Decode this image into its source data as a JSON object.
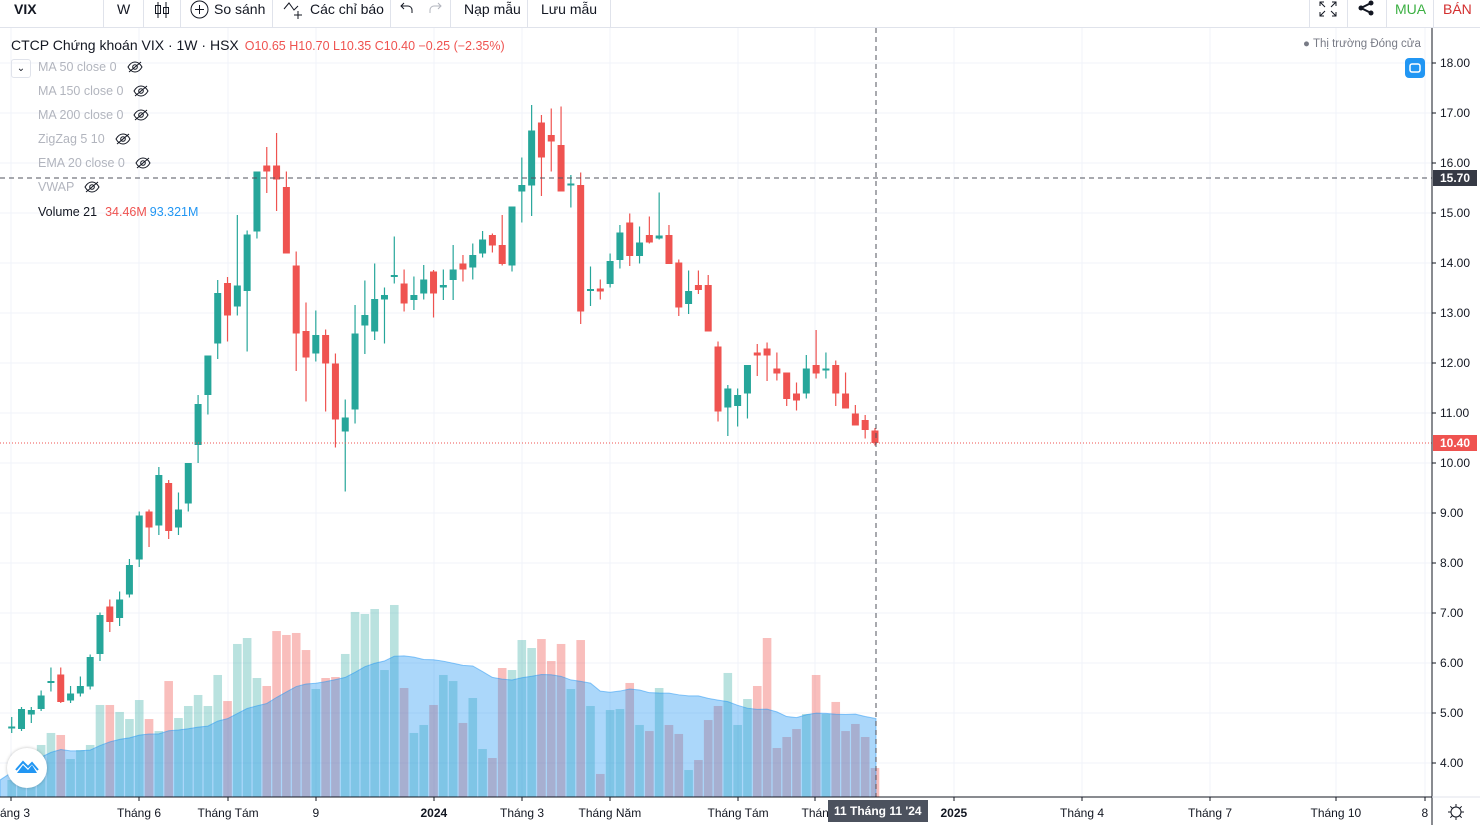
{
  "toolbar": {
    "symbol": "VIX",
    "interval": "W",
    "compare_label": "So sánh",
    "indicators_label": "Các chỉ báo",
    "load_template_label": "Nạp mẫu",
    "save_template_label": "Lưu mẫu",
    "buy_label": "MUA",
    "sell_label": "BÁN"
  },
  "legend": {
    "title": "CTCP Chứng khoán VIX · 1W · HSX",
    "ohlc": "O10.65 H10.70 L10.35 C10.40 −0.25 (−2.35%)",
    "indicators": [
      "MA 50 close 0",
      "MA 150 close 0",
      "MA 200 close 0",
      "ZigZag 5 10",
      "EMA 20 close 0",
      "VWAP"
    ],
    "volume_label": "Volume 21",
    "volume_value": "34.46M",
    "volume_ma_value": "93.321M"
  },
  "market_status": "Thị trường Đóng cửa",
  "crosshair": {
    "price_label": "15.70",
    "time_label": "11 Tháng 11 '24"
  },
  "last_price_label": "10.40",
  "colors": {
    "up": "#26a69a",
    "down": "#ef5350",
    "volume_ma": "#2196f3",
    "buy": "#3cb043",
    "sell": "#d32f2f",
    "accent": "#2196f3"
  },
  "chart_data": {
    "type": "candlestick",
    "price_axis": {
      "ticks": [
        "18.00",
        "17.00",
        "16.00",
        "15.00",
        "14.00",
        "13.00",
        "12.00",
        "11.00",
        "10.00",
        "9.00",
        "8.00",
        "7.00",
        "6.00",
        "5.00",
        "4.00"
      ],
      "range": [
        4,
        18
      ]
    },
    "time_axis": {
      "ticks": [
        "áng 3",
        "Tháng 6",
        "Tháng Tám",
        "9",
        "2024",
        "Tháng 3",
        "Tháng Năm",
        "Tháng Tám",
        "Thán",
        "2025",
        "Tháng 4",
        "Tháng 7",
        "Tháng 10",
        "8"
      ]
    },
    "grid": true,
    "candles_ohlc": [
      [
        4.72,
        4.92,
        4.6,
        4.73
      ],
      [
        4.68,
        5.12,
        4.64,
        5.08
      ],
      [
        4.97,
        5.12,
        4.8,
        5.06
      ],
      [
        5.08,
        5.45,
        5.04,
        5.35
      ],
      [
        5.62,
        5.91,
        5.43,
        5.64
      ],
      [
        5.77,
        5.91,
        5.2,
        5.22
      ],
      [
        5.25,
        5.54,
        5.2,
        5.39
      ],
      [
        5.39,
        5.73,
        5.33,
        5.54
      ],
      [
        5.53,
        6.17,
        5.47,
        6.12
      ],
      [
        6.18,
        7.01,
        6.04,
        6.96
      ],
      [
        7.13,
        7.27,
        6.62,
        6.82
      ],
      [
        6.9,
        7.43,
        6.74,
        7.27
      ],
      [
        7.37,
        8.08,
        7.31,
        7.96
      ],
      [
        8.07,
        9.03,
        7.92,
        8.95
      ],
      [
        9.03,
        9.07,
        8.32,
        8.71
      ],
      [
        8.75,
        9.92,
        8.56,
        9.76
      ],
      [
        9.6,
        9.66,
        8.48,
        8.64
      ],
      [
        8.71,
        9.41,
        8.56,
        9.07
      ],
      [
        9.19,
        10.0,
        9.03,
        10.0
      ],
      [
        10.36,
        11.36,
        10.0,
        11.18
      ],
      [
        11.36,
        12.15,
        10.97,
        12.15
      ],
      [
        12.39,
        13.66,
        12.08,
        13.4
      ],
      [
        13.6,
        13.72,
        12.43,
        12.95
      ],
      [
        13.13,
        14.96,
        12.95,
        13.55
      ],
      [
        13.44,
        14.65,
        12.23,
        14.57
      ],
      [
        14.63,
        15.83,
        14.49,
        15.83
      ],
      [
        15.95,
        16.32,
        15.4,
        15.83
      ],
      [
        15.95,
        16.6,
        15.04,
        15.67
      ],
      [
        15.52,
        15.83,
        14.19,
        14.19
      ],
      [
        13.95,
        14.23,
        11.84,
        12.59
      ],
      [
        12.64,
        13.21,
        11.23,
        12.11
      ],
      [
        12.19,
        13.05,
        12.03,
        12.56
      ],
      [
        12.56,
        12.67,
        11.03,
        11.99
      ],
      [
        11.99,
        12.19,
        10.31,
        10.87
      ],
      [
        10.63,
        11.27,
        9.43,
        10.91
      ],
      [
        11.07,
        13.16,
        10.79,
        12.59
      ],
      [
        12.75,
        13.65,
        12.18,
        12.96
      ],
      [
        12.63,
        13.99,
        12.46,
        13.28
      ],
      [
        13.27,
        13.51,
        12.39,
        13.36
      ],
      [
        13.72,
        14.53,
        13.59,
        13.76
      ],
      [
        13.59,
        13.87,
        13.03,
        13.19
      ],
      [
        13.26,
        13.73,
        13.06,
        13.36
      ],
      [
        13.39,
        13.96,
        13.27,
        13.67
      ],
      [
        13.83,
        13.86,
        12.91,
        13.39
      ],
      [
        13.51,
        13.87,
        13.26,
        13.56
      ],
      [
        13.66,
        14.36,
        13.26,
        13.87
      ],
      [
        13.99,
        14.16,
        13.63,
        13.87
      ],
      [
        13.91,
        14.39,
        13.67,
        14.16
      ],
      [
        14.19,
        14.64,
        14.11,
        14.47
      ],
      [
        14.56,
        14.59,
        14.21,
        14.35
      ],
      [
        14.36,
        14.96,
        13.95,
        13.98
      ],
      [
        13.95,
        15.13,
        13.83,
        15.13
      ],
      [
        15.43,
        16.11,
        14.81,
        15.56
      ],
      [
        15.55,
        17.16,
        14.94,
        16.65
      ],
      [
        16.81,
        16.96,
        15.34,
        16.11
      ],
      [
        16.56,
        17.09,
        15.83,
        16.43
      ],
      [
        16.36,
        17.13,
        15.43,
        15.43
      ],
      [
        15.55,
        15.76,
        15.11,
        15.59
      ],
      [
        15.56,
        15.81,
        12.78,
        13.03
      ],
      [
        13.46,
        13.93,
        13.14,
        13.48
      ],
      [
        13.49,
        13.67,
        13.27,
        13.43
      ],
      [
        13.58,
        14.19,
        13.51,
        14.04
      ],
      [
        14.06,
        14.76,
        13.89,
        14.61
      ],
      [
        14.81,
        14.99,
        13.94,
        14.14
      ],
      [
        14.14,
        14.73,
        13.99,
        14.41
      ],
      [
        14.56,
        14.93,
        14.39,
        14.41
      ],
      [
        14.49,
        15.41,
        14.47,
        14.55
      ],
      [
        14.56,
        14.76,
        13.98,
        13.98
      ],
      [
        14.01,
        14.07,
        12.94,
        13.11
      ],
      [
        13.18,
        13.85,
        12.98,
        13.44
      ],
      [
        13.56,
        13.85,
        13.38,
        13.46
      ],
      [
        13.56,
        13.76,
        12.63,
        12.63
      ],
      [
        12.33,
        12.43,
        10.83,
        11.03
      ],
      [
        11.11,
        11.56,
        10.54,
        11.49
      ],
      [
        11.14,
        11.49,
        10.73,
        11.36
      ],
      [
        11.39,
        11.96,
        10.89,
        11.96
      ],
      [
        12.21,
        12.38,
        11.74,
        12.15
      ],
      [
        12.29,
        12.41,
        11.64,
        12.15
      ],
      [
        11.89,
        12.21,
        11.65,
        11.79
      ],
      [
        11.81,
        11.81,
        11.14,
        11.28
      ],
      [
        11.39,
        11.61,
        11.05,
        11.25
      ],
      [
        11.39,
        12.16,
        11.29,
        11.89
      ],
      [
        11.96,
        12.66,
        11.69,
        11.79
      ],
      [
        11.85,
        12.21,
        11.69,
        11.89
      ],
      [
        11.96,
        12.05,
        11.14,
        11.39
      ],
      [
        11.39,
        11.81,
        11.09,
        11.09
      ],
      [
        10.99,
        11.16,
        10.75,
        10.75
      ],
      [
        10.86,
        10.96,
        10.49,
        10.66
      ],
      [
        10.65,
        10.7,
        10.35,
        10.4
      ]
    ],
    "volume_millions": [
      20.2,
      53.6,
      53.6,
      61.9,
      76.2,
      73.8,
      45.2,
      55.9,
      61.9,
      109.5,
      109.5,
      101.2,
      92.8,
      115.4,
      92.8,
      78.5,
      138.0,
      94.0,
      108.3,
      121.4,
      108.3,
      145.2,
      114.2,
      182.1,
      189.2,
      141.6,
      132.1,
      197.5,
      192.8,
      195.2,
      174.9,
      128.5,
      141.6,
      142.8,
      170.2,
      220.2,
      217.8,
      223.7,
      151.1,
      228.5,
      129.7,
      76.2,
      85.7,
      109.5,
      145.2,
      138.0,
      88.1,
      117.8,
      57.1,
      46.4,
      153.5,
      151.1,
      186.8,
      177.3,
      188.0,
      161.8,
      182.1,
      128.5,
      186.8,
      108.3,
      27.4,
      103.5,
      104.7,
      135.7,
      85.7,
      78.5,
      129.7,
      85.7,
      75.0,
      32.1,
      44.0,
      91.6,
      108.3,
      147.6,
      85.7,
      116.6,
      132.1,
      189.2,
      58.3,
      71.4,
      80.9,
      98.8,
      145.2,
      98.8,
      113.1,
      78.5,
      86.9,
      71.4,
      34.46
    ],
    "volume_ma_period": 21
  }
}
